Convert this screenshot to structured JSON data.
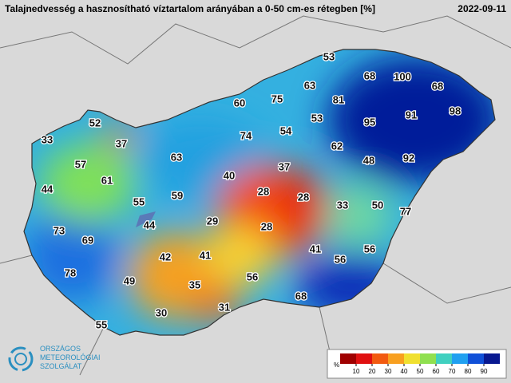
{
  "header": {
    "title": "Talajnedvesség a hasznosítható víztartalom arányában a 0-50 cm-es rétegben [%]",
    "date": "2022-09-11"
  },
  "stations": {
    "values": [
      53,
      68,
      100,
      68,
      63,
      75,
      81,
      60,
      95,
      91,
      98,
      53,
      52,
      54,
      74,
      33,
      37,
      62,
      48,
      92,
      63,
      57,
      37,
      40,
      61,
      44,
      28,
      28,
      55,
      59,
      33,
      50,
      77,
      29,
      44,
      28,
      73,
      69,
      41,
      56,
      41,
      42,
      56,
      78,
      56,
      49,
      35,
      68,
      31,
      30,
      55
    ]
  },
  "colorbar": {
    "unit": "%",
    "range": [
      0,
      100
    ],
    "ticks": [
      10,
      20,
      30,
      40,
      50,
      60,
      70,
      80,
      90
    ]
  },
  "logo": {
    "lines": [
      "ORSZÁGOS",
      "METEOROLÓGIAI",
      "SZOLGÁLAT"
    ]
  }
}
